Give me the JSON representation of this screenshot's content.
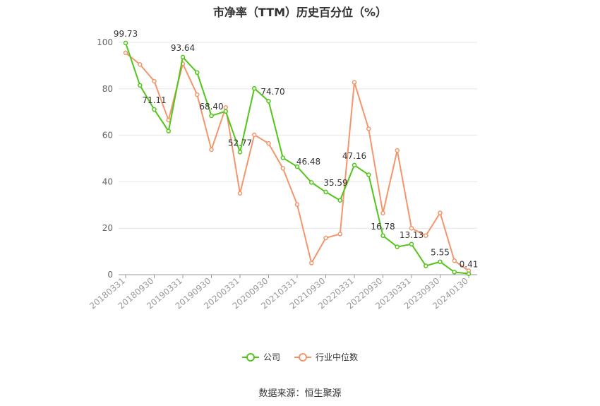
{
  "title": "市净率（TTM）历史百分位（%）",
  "source": "数据来源：恒生聚源",
  "colors": {
    "company": "#52c41a",
    "industry": "#f5956b",
    "grid": "#e6e6e6",
    "axis": "#999999"
  },
  "chart_data": {
    "type": "line",
    "title": "市净率（TTM）历史百分位（%）",
    "ylim": [
      0,
      100
    ],
    "yticks": [
      0,
      20,
      40,
      60,
      80,
      100
    ],
    "grid": true,
    "legend_position": "bottom",
    "x": [
      "20180331",
      "20180630",
      "20180930",
      "20181231",
      "20190331",
      "20190630",
      "20190930",
      "20191231",
      "20200331",
      "20200630",
      "20200930",
      "20201231",
      "20210331",
      "20210630",
      "20210930",
      "20211231",
      "20220331",
      "20220630",
      "20220930",
      "20221231",
      "20230331",
      "20230630",
      "20230930",
      "20231231",
      "20240130"
    ],
    "xtick_labels": [
      "20180331",
      "20180930",
      "20190331",
      "20190930",
      "20200331",
      "20200930",
      "20210331",
      "20210930",
      "20220331",
      "20220930",
      "20230331",
      "20230930",
      "20240130"
    ],
    "series": [
      {
        "name": "公司",
        "values": [
          99.73,
          81.5,
          71.11,
          61.8,
          93.64,
          87.0,
          68.4,
          70.3,
          52.77,
          80.2,
          74.7,
          50.3,
          46.48,
          39.7,
          35.59,
          32.0,
          47.16,
          43.0,
          16.78,
          12.0,
          13.13,
          3.8,
          5.55,
          1.1,
          0.41
        ]
      },
      {
        "name": "行业中位数",
        "values": [
          95.5,
          90.5,
          83.3,
          66.5,
          90.8,
          77.5,
          53.8,
          72.0,
          35.0,
          60.2,
          56.5,
          45.8,
          30.2,
          5.0,
          15.8,
          17.5,
          82.8,
          62.8,
          26.5,
          53.5,
          20.0,
          16.8,
          26.6,
          6.0,
          1.7
        ]
      }
    ],
    "data_labels": [
      {
        "index": 0,
        "text": "99.73"
      },
      {
        "index": 2,
        "text": "71.11"
      },
      {
        "index": 4,
        "text": "93.64"
      },
      {
        "index": 6,
        "text": "68.40"
      },
      {
        "index": 8,
        "text": "52.77"
      },
      {
        "index": 10,
        "text": "74.70"
      },
      {
        "index": 12,
        "text": "46.48"
      },
      {
        "index": 14,
        "text": "35.59"
      },
      {
        "index": 16,
        "text": "47.16"
      },
      {
        "index": 18,
        "text": "16.78"
      },
      {
        "index": 20,
        "text": "13.13"
      },
      {
        "index": 22,
        "text": "5.55"
      },
      {
        "index": 24,
        "text": "0.41"
      }
    ]
  }
}
